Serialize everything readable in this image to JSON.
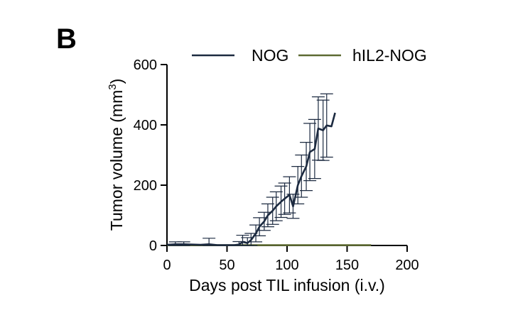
{
  "panel_label": "B",
  "colors": {
    "NOG": "#1c2a40",
    "hIL2-NOG": "#5d6a32",
    "axis": "#000000",
    "errorbar": "#1c2a40"
  },
  "chart_data": {
    "type": "line",
    "title": "",
    "xlabel": "Days post TIL infusion (i.v.)",
    "ylabel_prefix": "Tumor volume (mm",
    "ylabel_sup": "3",
    "ylabel_suffix": ")",
    "xlim": [
      0,
      200
    ],
    "ylim": [
      0,
      600
    ],
    "xticks": [
      0,
      50,
      100,
      150,
      200
    ],
    "yticks": [
      0,
      200,
      400,
      600
    ],
    "legend_position": "top",
    "grid": false,
    "series": [
      {
        "name": "NOG",
        "color": "#1c2a40",
        "x": [
          0,
          7,
          14,
          21,
          28,
          35,
          42,
          49,
          56,
          60,
          63,
          67,
          70,
          74,
          77,
          81,
          84,
          88,
          91,
          95,
          98,
          102,
          105,
          109,
          112,
          116,
          119,
          123,
          126,
          130,
          133,
          137,
          140
        ],
        "y": [
          2,
          4,
          4,
          3,
          2,
          4,
          1,
          1,
          1,
          3,
          12,
          8,
          18,
          40,
          62,
          80,
          100,
          115,
          130,
          145,
          155,
          168,
          130,
          200,
          230,
          262,
          310,
          320,
          388,
          382,
          398,
          395,
          440
        ],
        "err": [
          null,
          8,
          8,
          null,
          null,
          20,
          null,
          null,
          null,
          10,
          22,
          18,
          22,
          28,
          30,
          30,
          38,
          45,
          48,
          52,
          52,
          60,
          40,
          62,
          70,
          80,
          95,
          98,
          105,
          100,
          105,
          null,
          null
        ]
      },
      {
        "name": "hIL2-NOG",
        "color": "#5d6a32",
        "x": [
          0,
          170
        ],
        "y": [
          1,
          1
        ],
        "err": []
      }
    ]
  }
}
